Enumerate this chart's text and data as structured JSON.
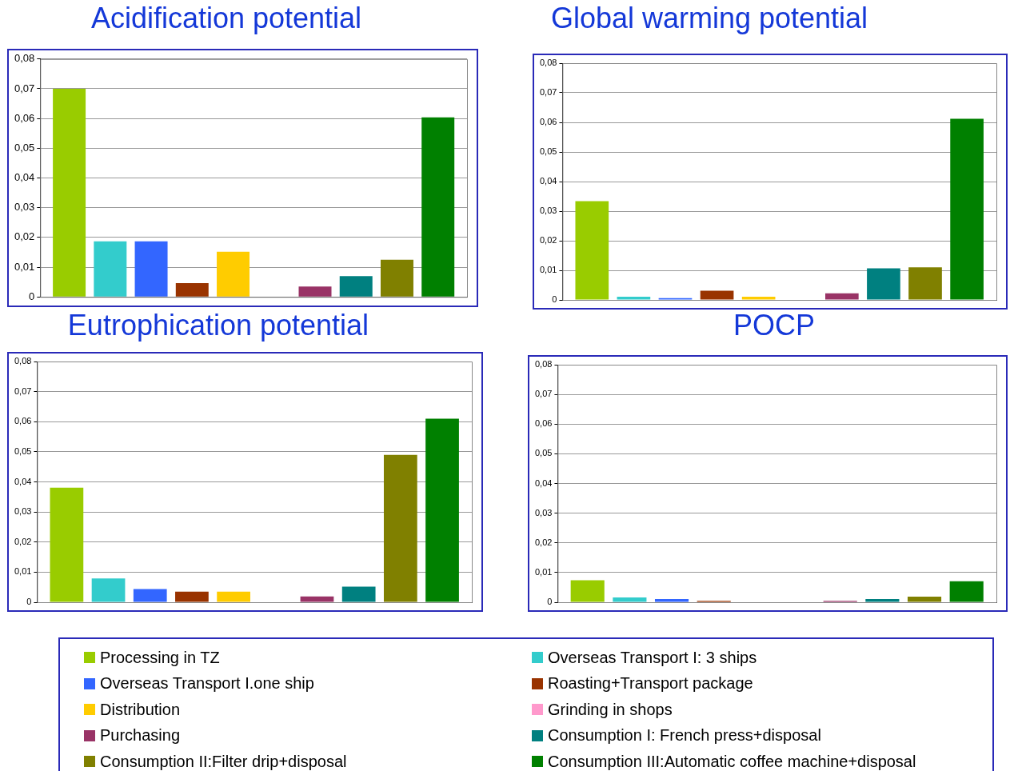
{
  "chart_data": [
    {
      "type": "bar",
      "title": "Acidification potential",
      "categories": [
        null
      ],
      "ylim": [
        0,
        0.08
      ],
      "yticks": [
        {
          "value": 0,
          "label": "0"
        },
        {
          "value": 0.01,
          "label": "0,01"
        },
        {
          "value": 0.02,
          "label": "0,02"
        },
        {
          "value": 0.03,
          "label": "0,03"
        },
        {
          "value": 0.04,
          "label": "0,04"
        },
        {
          "value": 0.05,
          "label": "0,05"
        },
        {
          "value": 0.06,
          "label": "0,06"
        },
        {
          "value": 0.07,
          "label": "0,07"
        },
        {
          "value": 0.08,
          "label": "0,08"
        }
      ],
      "grid": "y",
      "tick_labels": "y",
      "legend": false,
      "series": [
        {
          "color": "#99cc00",
          "values": [
            0.07
          ]
        },
        {
          "color": "#33cccc",
          "values": [
            0.0187
          ]
        },
        {
          "color": "#3366ff",
          "values": [
            0.0187
          ]
        },
        {
          "color": "#993300",
          "values": [
            0.0046
          ]
        },
        {
          "color": "#ffcc00",
          "values": [
            0.0152
          ]
        },
        {
          "color": "#ff99cc",
          "values": [
            0
          ]
        },
        {
          "color": "#993366",
          "values": [
            0.0035
          ]
        },
        {
          "color": "#008080",
          "values": [
            0.007
          ]
        },
        {
          "color": "#808000",
          "values": [
            0.0125
          ]
        },
        {
          "color": "#008000",
          "values": [
            0.0604
          ]
        }
      ]
    },
    {
      "type": "bar",
      "title": "Global warming potential",
      "categories": [
        null
      ],
      "ylim": [
        0,
        0.08
      ],
      "yticks": [
        {
          "value": 0,
          "label": "0"
        },
        {
          "value": 0.01,
          "label": "0,01"
        },
        {
          "value": 0.02,
          "label": "0,02"
        },
        {
          "value": 0.03,
          "label": "0,03"
        },
        {
          "value": 0.04,
          "label": "0,04"
        },
        {
          "value": 0.05,
          "label": "0,05"
        },
        {
          "value": 0.06,
          "label": "0,06"
        },
        {
          "value": 0.07,
          "label": "0,07"
        },
        {
          "value": 0.08,
          "label": "0,08"
        }
      ],
      "grid": "y",
      "tick_labels": "y",
      "legend": false,
      "series": [
        {
          "color": "#99cc00",
          "values": [
            0.0334
          ]
        },
        {
          "color": "#33cccc",
          "values": [
            0.0011
          ]
        },
        {
          "color": "#3366ff",
          "values": [
            0.0006
          ]
        },
        {
          "color": "#993300",
          "values": [
            0.0031
          ]
        },
        {
          "color": "#ffcc00",
          "values": [
            0.0011
          ]
        },
        {
          "color": "#ff99cc",
          "values": [
            0
          ]
        },
        {
          "color": "#993366",
          "values": [
            0.0022
          ]
        },
        {
          "color": "#008080",
          "values": [
            0.0107
          ]
        },
        {
          "color": "#808000",
          "values": [
            0.011
          ]
        },
        {
          "color": "#008000",
          "values": [
            0.0612
          ]
        }
      ]
    },
    {
      "type": "bar",
      "title": "Eutrophication potential",
      "categories": [
        null
      ],
      "ylim": [
        0,
        0.08
      ],
      "yticks": [
        {
          "value": 0,
          "label": "0"
        },
        {
          "value": 0.01,
          "label": "0,01"
        },
        {
          "value": 0.02,
          "label": "0,02"
        },
        {
          "value": 0.03,
          "label": "0,03"
        },
        {
          "value": 0.04,
          "label": "0,04"
        },
        {
          "value": 0.05,
          "label": "0,05"
        },
        {
          "value": 0.06,
          "label": "0,06"
        },
        {
          "value": 0.07,
          "label": "0,07"
        },
        {
          "value": 0.08,
          "label": "0,08"
        }
      ],
      "grid": "y",
      "tick_labels": "y",
      "legend": false,
      "series": [
        {
          "color": "#99cc00",
          "values": [
            0.0381
          ]
        },
        {
          "color": "#33cccc",
          "values": [
            0.0079
          ]
        },
        {
          "color": "#3366ff",
          "values": [
            0.0044
          ]
        },
        {
          "color": "#993300",
          "values": [
            0.0035
          ]
        },
        {
          "color": "#ffcc00",
          "values": [
            0.0035
          ]
        },
        {
          "color": "#ff99cc",
          "values": [
            0
          ]
        },
        {
          "color": "#993366",
          "values": [
            0.0019
          ]
        },
        {
          "color": "#008080",
          "values": [
            0.0052
          ]
        },
        {
          "color": "#808000",
          "values": [
            0.049
          ]
        },
        {
          "color": "#008000",
          "values": [
            0.061
          ]
        }
      ]
    },
    {
      "type": "bar",
      "title": "POCP",
      "categories": [
        null
      ],
      "ylim": [
        0,
        0.08
      ],
      "yticks": [
        {
          "value": 0,
          "label": "0"
        },
        {
          "value": 0.01,
          "label": "0,01"
        },
        {
          "value": 0.02,
          "label": "0,02"
        },
        {
          "value": 0.03,
          "label": "0,03"
        },
        {
          "value": 0.04,
          "label": "0,04"
        },
        {
          "value": 0.05,
          "label": "0,05"
        },
        {
          "value": 0.06,
          "label": "0,06"
        },
        {
          "value": 0.07,
          "label": "0,07"
        },
        {
          "value": 0.08,
          "label": "0,08"
        }
      ],
      "grid": "y",
      "tick_labels": "y",
      "legend": "bottom",
      "series": [
        {
          "name": "Processing in TZ",
          "color": "#99cc00",
          "values": [
            0.0074
          ]
        },
        {
          "name": "Overseas Transport I: 3 ships",
          "color": "#33cccc",
          "values": [
            0.0016
          ]
        },
        {
          "name": "Overseas Transport I.one ship",
          "color": "#3366ff",
          "values": [
            0.0011
          ]
        },
        {
          "name": "Roasting+Transport package",
          "color": "#993300",
          "values": [
            0.0005
          ]
        },
        {
          "name": "Distribution",
          "color": "#ffcc00",
          "values": [
            0
          ]
        },
        {
          "name": "Grinding in shops",
          "color": "#ff99cc",
          "values": [
            0
          ]
        },
        {
          "name": "Purchasing",
          "color": "#993366",
          "values": [
            0.0005
          ]
        },
        {
          "name": "Consumption I: French press+disposal",
          "color": "#008080",
          "values": [
            0.0011
          ]
        },
        {
          "name": "Consumption II:Filter drip+disposal",
          "color": "#808000",
          "values": [
            0.0019
          ]
        },
        {
          "name": "Consumption III:Automatic coffee machine+disposal",
          "color": "#008000",
          "values": [
            0.0071
          ]
        }
      ]
    }
  ]
}
